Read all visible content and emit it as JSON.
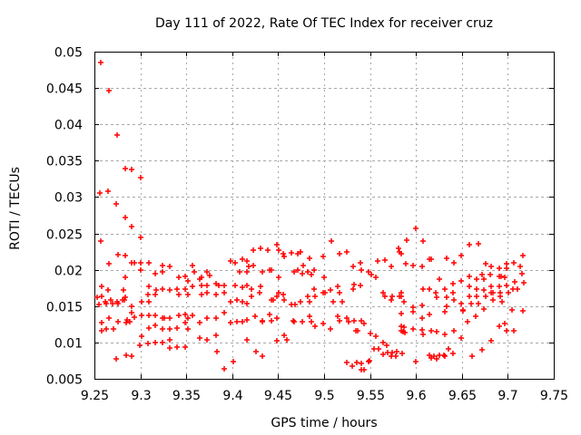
{
  "chart_data": {
    "type": "scatter",
    "title": "Day 111 of 2022, Rate Of TEC Index for receiver cruz",
    "xlabel": "GPS time / hours",
    "ylabel": "ROTI / TECUs",
    "xlim": [
      9.25,
      9.75
    ],
    "ylim": [
      0.005,
      0.05
    ],
    "x_ticks": {
      "values": [
        9.25,
        9.3,
        9.35,
        9.4,
        9.45,
        9.5,
        9.55,
        9.6,
        9.65,
        9.7,
        9.75
      ],
      "labels": [
        "9.25",
        "9.3",
        "9.35",
        "9.4",
        "9.45",
        "9.5",
        "9.55",
        "9.6",
        "9.65",
        "9.7",
        "9.75"
      ]
    },
    "y_ticks": {
      "values": [
        0.005,
        0.01,
        0.015,
        0.02,
        0.025,
        0.03,
        0.035,
        0.04,
        0.045,
        0.05
      ],
      "labels": [
        "0.005",
        "0.01",
        "0.015",
        "0.02",
        "0.025",
        "0.03",
        "0.035",
        "0.04",
        "0.045",
        "0.05"
      ]
    },
    "grid": true,
    "legend_position": "none",
    "marker": "plus",
    "marker_color": "#ff0000",
    "grid_color": "#a8a8a8",
    "border_color": "#000000",
    "points": [
      [
        9.257,
        0.0485
      ],
      [
        9.266,
        0.0446
      ],
      [
        9.275,
        0.0385
      ],
      [
        9.284,
        0.0339
      ],
      [
        9.291,
        0.0338
      ],
      [
        9.3,
        0.0327
      ],
      [
        9.256,
        0.0306
      ],
      [
        9.265,
        0.0308
      ],
      [
        9.274,
        0.029
      ],
      [
        9.284,
        0.0272
      ],
      [
        9.291,
        0.026
      ],
      [
        9.3,
        0.0245
      ],
      [
        9.257,
        0.0239
      ],
      [
        9.276,
        0.0221
      ],
      [
        9.284,
        0.0219
      ],
      [
        9.266,
        0.0208
      ],
      [
        9.291,
        0.021
      ],
      [
        9.293,
        0.021
      ],
      [
        9.3,
        0.021
      ],
      [
        9.309,
        0.0209
      ],
      [
        9.3,
        0.0199
      ],
      [
        9.316,
        0.0195
      ],
      [
        9.324,
        0.0206
      ],
      [
        9.332,
        0.0204
      ],
      [
        9.324,
        0.0197
      ],
      [
        9.342,
        0.0189
      ],
      [
        9.349,
        0.0191
      ],
      [
        9.352,
        0.0185
      ],
      [
        9.357,
        0.0206
      ],
      [
        9.359,
        0.0197
      ],
      [
        9.367,
        0.0189
      ],
      [
        9.373,
        0.0197
      ],
      [
        9.375,
        0.0192
      ],
      [
        9.382,
        0.0181
      ],
      [
        9.385,
        0.0179
      ],
      [
        9.391,
        0.0179
      ],
      [
        9.398,
        0.0212
      ],
      [
        9.403,
        0.021
      ],
      [
        9.411,
        0.0214
      ],
      [
        9.416,
        0.0212
      ],
      [
        9.408,
        0.0197
      ],
      [
        9.416,
        0.0197
      ],
      [
        9.403,
        0.0178
      ],
      [
        9.411,
        0.0176
      ],
      [
        9.416,
        0.0178
      ],
      [
        9.284,
        0.0189
      ],
      [
        9.258,
        0.0177
      ],
      [
        9.265,
        0.0172
      ],
      [
        9.253,
        0.0162
      ],
      [
        9.258,
        0.0164
      ],
      [
        9.282,
        0.0172
      ],
      [
        9.284,
        0.0162
      ],
      [
        9.262,
        0.0156
      ],
      [
        9.268,
        0.0158
      ],
      [
        9.275,
        0.0156
      ],
      [
        9.281,
        0.0158
      ],
      [
        9.283,
        0.0158
      ],
      [
        9.255,
        0.0152
      ],
      [
        9.263,
        0.0154
      ],
      [
        9.27,
        0.0154
      ],
      [
        9.276,
        0.0154
      ],
      [
        9.291,
        0.015
      ],
      [
        9.301,
        0.0156
      ],
      [
        9.309,
        0.0156
      ],
      [
        9.309,
        0.0177
      ],
      [
        9.308,
        0.0166
      ],
      [
        9.316,
        0.0166
      ],
      [
        9.317,
        0.0172
      ],
      [
        9.324,
        0.0174
      ],
      [
        9.332,
        0.0172
      ],
      [
        9.34,
        0.0174
      ],
      [
        9.342,
        0.0166
      ],
      [
        9.349,
        0.0174
      ],
      [
        9.352,
        0.0166
      ],
      [
        9.357,
        0.0177
      ],
      [
        9.365,
        0.0187
      ],
      [
        9.367,
        0.0178
      ],
      [
        9.373,
        0.0178
      ],
      [
        9.367,
        0.0166
      ],
      [
        9.373,
        0.0168
      ],
      [
        9.382,
        0.0166
      ],
      [
        9.391,
        0.0168
      ],
      [
        9.398,
        0.0156
      ],
      [
        9.405,
        0.0158
      ],
      [
        9.411,
        0.0156
      ],
      [
        9.416,
        0.0154
      ],
      [
        9.291,
        0.0141
      ],
      [
        9.293,
        0.0135
      ],
      [
        9.286,
        0.0131
      ],
      [
        9.289,
        0.0129
      ],
      [
        9.266,
        0.0133
      ],
      [
        9.276,
        0.0129
      ],
      [
        9.285,
        0.0127
      ],
      [
        9.258,
        0.0127
      ],
      [
        9.263,
        0.0118
      ],
      [
        9.271,
        0.0118
      ],
      [
        9.258,
        0.0116
      ],
      [
        9.301,
        0.0137
      ],
      [
        9.309,
        0.0137
      ],
      [
        9.316,
        0.0137
      ],
      [
        9.324,
        0.0133
      ],
      [
        9.326,
        0.0133
      ],
      [
        9.332,
        0.0133
      ],
      [
        9.342,
        0.0137
      ],
      [
        9.349,
        0.0139
      ],
      [
        9.352,
        0.0133
      ],
      [
        9.357,
        0.0137
      ],
      [
        9.365,
        0.0127
      ],
      [
        9.373,
        0.0133
      ],
      [
        9.382,
        0.0133
      ],
      [
        9.391,
        0.0141
      ],
      [
        9.398,
        0.0127
      ],
      [
        9.405,
        0.0129
      ],
      [
        9.411,
        0.0129
      ],
      [
        9.416,
        0.0131
      ],
      [
        9.309,
        0.012
      ],
      [
        9.316,
        0.0123
      ],
      [
        9.324,
        0.0118
      ],
      [
        9.332,
        0.0118
      ],
      [
        9.34,
        0.012
      ],
      [
        9.349,
        0.0127
      ],
      [
        9.352,
        0.0118
      ],
      [
        9.365,
        0.0106
      ],
      [
        9.373,
        0.0104
      ],
      [
        9.382,
        0.011
      ],
      [
        9.301,
        0.0108
      ],
      [
        9.299,
        0.0096
      ],
      [
        9.308,
        0.0098
      ],
      [
        9.316,
        0.01
      ],
      [
        9.324,
        0.01
      ],
      [
        9.332,
        0.0104
      ],
      [
        9.332,
        0.0092
      ],
      [
        9.34,
        0.0094
      ],
      [
        9.349,
        0.0094
      ],
      [
        9.285,
        0.0083
      ],
      [
        9.291,
        0.0081
      ],
      [
        9.274,
        0.0078
      ],
      [
        9.383,
        0.0087
      ],
      [
        9.401,
        0.0074
      ],
      [
        9.391,
        0.0064
      ],
      [
        9.416,
        0.0104
      ],
      [
        9.508,
        0.0239
      ],
      [
        9.423,
        0.0227
      ],
      [
        9.431,
        0.0229
      ],
      [
        9.439,
        0.0227
      ],
      [
        9.449,
        0.0234
      ],
      [
        9.451,
        0.0227
      ],
      [
        9.456,
        0.0222
      ],
      [
        9.457,
        0.0218
      ],
      [
        9.464,
        0.0223
      ],
      [
        9.471,
        0.0222
      ],
      [
        9.474,
        0.0224
      ],
      [
        9.484,
        0.0216
      ],
      [
        9.499,
        0.0218
      ],
      [
        9.517,
        0.0222
      ],
      [
        9.525,
        0.0224
      ],
      [
        9.581,
        0.0229
      ],
      [
        9.584,
        0.0222
      ],
      [
        9.418,
        0.0204
      ],
      [
        9.423,
        0.0206
      ],
      [
        9.433,
        0.0197
      ],
      [
        9.441,
        0.0199
      ],
      [
        9.443,
        0.0199
      ],
      [
        9.451,
        0.0189
      ],
      [
        9.467,
        0.0197
      ],
      [
        9.471,
        0.0199
      ],
      [
        9.476,
        0.0195
      ],
      [
        9.477,
        0.0206
      ],
      [
        9.482,
        0.0197
      ],
      [
        9.486,
        0.0193
      ],
      [
        9.489,
        0.0199
      ],
      [
        9.5,
        0.0189
      ],
      [
        9.532,
        0.0204
      ],
      [
        9.54,
        0.021
      ],
      [
        9.541,
        0.0199
      ],
      [
        9.548,
        0.0197
      ],
      [
        9.551,
        0.0193
      ],
      [
        9.556,
        0.0189
      ],
      [
        9.558,
        0.0212
      ],
      [
        9.566,
        0.0213
      ],
      [
        9.573,
        0.0204
      ],
      [
        9.421,
        0.0174
      ],
      [
        9.421,
        0.0163
      ],
      [
        9.43,
        0.0168
      ],
      [
        9.431,
        0.0177
      ],
      [
        9.443,
        0.0158
      ],
      [
        9.445,
        0.0158
      ],
      [
        9.449,
        0.0163
      ],
      [
        9.451,
        0.0169
      ],
      [
        9.456,
        0.0166
      ],
      [
        9.457,
        0.0158
      ],
      [
        9.464,
        0.0152
      ],
      [
        9.468,
        0.0152
      ],
      [
        9.474,
        0.0156
      ],
      [
        9.482,
        0.0163
      ],
      [
        9.484,
        0.0156
      ],
      [
        9.489,
        0.0174
      ],
      [
        9.49,
        0.0163
      ],
      [
        9.499,
        0.0168
      ],
      [
        9.501,
        0.0168
      ],
      [
        9.507,
        0.0172
      ],
      [
        9.51,
        0.0156
      ],
      [
        9.515,
        0.0177
      ],
      [
        9.517,
        0.0168
      ],
      [
        9.52,
        0.0156
      ],
      [
        9.532,
        0.0174
      ],
      [
        9.533,
        0.018
      ],
      [
        9.54,
        0.0178
      ],
      [
        9.564,
        0.0169
      ],
      [
        9.566,
        0.0163
      ],
      [
        9.573,
        0.0158
      ],
      [
        9.574,
        0.0163
      ],
      [
        9.584,
        0.0168
      ],
      [
        9.584,
        0.0163
      ],
      [
        9.584,
        0.014
      ],
      [
        9.425,
        0.0136
      ],
      [
        9.433,
        0.013
      ],
      [
        9.433,
        0.0128
      ],
      [
        9.441,
        0.0138
      ],
      [
        9.443,
        0.013
      ],
      [
        9.449,
        0.0134
      ],
      [
        9.457,
        0.011
      ],
      [
        9.459,
        0.0104
      ],
      [
        9.466,
        0.013
      ],
      [
        9.467,
        0.0128
      ],
      [
        9.476,
        0.0129
      ],
      [
        9.484,
        0.0136
      ],
      [
        9.486,
        0.0128
      ],
      [
        9.49,
        0.0122
      ],
      [
        9.499,
        0.0126
      ],
      [
        9.507,
        0.0119
      ],
      [
        9.515,
        0.0136
      ],
      [
        9.517,
        0.013
      ],
      [
        9.525,
        0.0134
      ],
      [
        9.527,
        0.0128
      ],
      [
        9.533,
        0.013
      ],
      [
        9.535,
        0.0116
      ],
      [
        9.537,
        0.0116
      ],
      [
        9.541,
        0.013
      ],
      [
        9.543,
        0.0126
      ],
      [
        9.55,
        0.0112
      ],
      [
        9.556,
        0.0108
      ],
      [
        9.559,
        0.0091
      ],
      [
        9.564,
        0.01
      ],
      [
        9.568,
        0.0096
      ],
      [
        9.573,
        0.0081
      ],
      [
        9.578,
        0.0081
      ],
      [
        9.584,
        0.0122
      ],
      [
        9.584,
        0.0116
      ],
      [
        9.525,
        0.0072
      ],
      [
        9.531,
        0.0068
      ],
      [
        9.536,
        0.0072
      ],
      [
        9.541,
        0.0071
      ],
      [
        9.541,
        0.0062
      ],
      [
        9.543,
        0.0062
      ],
      [
        9.548,
        0.0074
      ],
      [
        9.549,
        0.0075
      ],
      [
        9.554,
        0.0091
      ],
      [
        9.564,
        0.0084
      ],
      [
        9.569,
        0.0086
      ],
      [
        9.574,
        0.0086
      ],
      [
        9.579,
        0.0088
      ],
      [
        9.426,
        0.0087
      ],
      [
        9.433,
        0.0081
      ],
      [
        9.449,
        0.0102
      ],
      [
        9.6,
        0.0257
      ],
      [
        9.59,
        0.0241
      ],
      [
        9.608,
        0.0239
      ],
      [
        9.658,
        0.0235
      ],
      [
        9.668,
        0.0236
      ],
      [
        9.582,
        0.0224
      ],
      [
        9.615,
        0.0214
      ],
      [
        9.617,
        0.0214
      ],
      [
        9.633,
        0.0216
      ],
      [
        9.641,
        0.021
      ],
      [
        9.649,
        0.0219
      ],
      [
        9.589,
        0.0208
      ],
      [
        9.597,
        0.0206
      ],
      [
        9.607,
        0.0204
      ],
      [
        9.676,
        0.0208
      ],
      [
        9.682,
        0.0204
      ],
      [
        9.691,
        0.0202
      ],
      [
        9.699,
        0.0208
      ],
      [
        9.699,
        0.0202
      ],
      [
        9.707,
        0.021
      ],
      [
        9.625,
        0.0187
      ],
      [
        9.64,
        0.0181
      ],
      [
        9.649,
        0.0185
      ],
      [
        9.658,
        0.0191
      ],
      [
        9.666,
        0.0187
      ],
      [
        9.672,
        0.0193
      ],
      [
        9.674,
        0.0187
      ],
      [
        9.681,
        0.0193
      ],
      [
        9.691,
        0.0191
      ],
      [
        9.693,
        0.0191
      ],
      [
        9.697,
        0.0189
      ],
      [
        9.708,
        0.0183
      ],
      [
        9.717,
        0.0182
      ],
      [
        9.582,
        0.0163
      ],
      [
        9.587,
        0.0156
      ],
      [
        9.597,
        0.0148
      ],
      [
        9.607,
        0.0151
      ],
      [
        9.608,
        0.0174
      ],
      [
        9.615,
        0.0174
      ],
      [
        9.622,
        0.0168
      ],
      [
        9.623,
        0.0162
      ],
      [
        9.631,
        0.0174
      ],
      [
        9.633,
        0.0162
      ],
      [
        9.633,
        0.015
      ],
      [
        9.64,
        0.0168
      ],
      [
        9.641,
        0.0158
      ],
      [
        9.649,
        0.0154
      ],
      [
        9.651,
        0.0145
      ],
      [
        9.658,
        0.0177
      ],
      [
        9.658,
        0.0163
      ],
      [
        9.66,
        0.0154
      ],
      [
        9.666,
        0.0174
      ],
      [
        9.666,
        0.0163
      ],
      [
        9.668,
        0.0154
      ],
      [
        9.674,
        0.0172
      ],
      [
        9.676,
        0.0163
      ],
      [
        9.682,
        0.0177
      ],
      [
        9.682,
        0.0169
      ],
      [
        9.684,
        0.0169
      ],
      [
        9.684,
        0.0158
      ],
      [
        9.691,
        0.0177
      ],
      [
        9.692,
        0.0169
      ],
      [
        9.692,
        0.0163
      ],
      [
        9.694,
        0.0156
      ],
      [
        9.699,
        0.0178
      ],
      [
        9.701,
        0.0169
      ],
      [
        9.706,
        0.0174
      ],
      [
        9.71,
        0.0174
      ],
      [
        9.713,
        0.0204
      ],
      [
        9.716,
        0.0219
      ],
      [
        9.715,
        0.0194
      ],
      [
        9.705,
        0.0145
      ],
      [
        9.716,
        0.0143
      ],
      [
        9.587,
        0.0121
      ],
      [
        9.586,
        0.0115
      ],
      [
        9.588,
        0.0114
      ],
      [
        9.597,
        0.0142
      ],
      [
        9.597,
        0.0119
      ],
      [
        9.607,
        0.0134
      ],
      [
        9.607,
        0.0117
      ],
      [
        9.608,
        0.0111
      ],
      [
        9.615,
        0.0138
      ],
      [
        9.617,
        0.0116
      ],
      [
        9.623,
        0.0115
      ],
      [
        9.631,
        0.0142
      ],
      [
        9.631,
        0.0111
      ],
      [
        9.641,
        0.0116
      ],
      [
        9.649,
        0.0106
      ],
      [
        9.651,
        0.0143
      ],
      [
        9.656,
        0.0129
      ],
      [
        9.665,
        0.0136
      ],
      [
        9.674,
        0.0146
      ],
      [
        9.682,
        0.0102
      ],
      [
        9.691,
        0.0122
      ],
      [
        9.697,
        0.0126
      ],
      [
        9.699,
        0.0116
      ],
      [
        9.707,
        0.0116
      ],
      [
        9.672,
        0.009
      ],
      [
        9.661,
        0.0081
      ],
      [
        9.615,
        0.0083
      ],
      [
        9.62,
        0.0081
      ],
      [
        9.625,
        0.0082
      ],
      [
        9.63,
        0.0083
      ],
      [
        9.635,
        0.0091
      ],
      [
        9.617,
        0.0079
      ],
      [
        9.623,
        0.0077
      ],
      [
        9.631,
        0.0081
      ],
      [
        9.64,
        0.0085
      ],
      [
        9.585,
        0.0085
      ],
      [
        9.6,
        0.0074
      ]
    ]
  }
}
